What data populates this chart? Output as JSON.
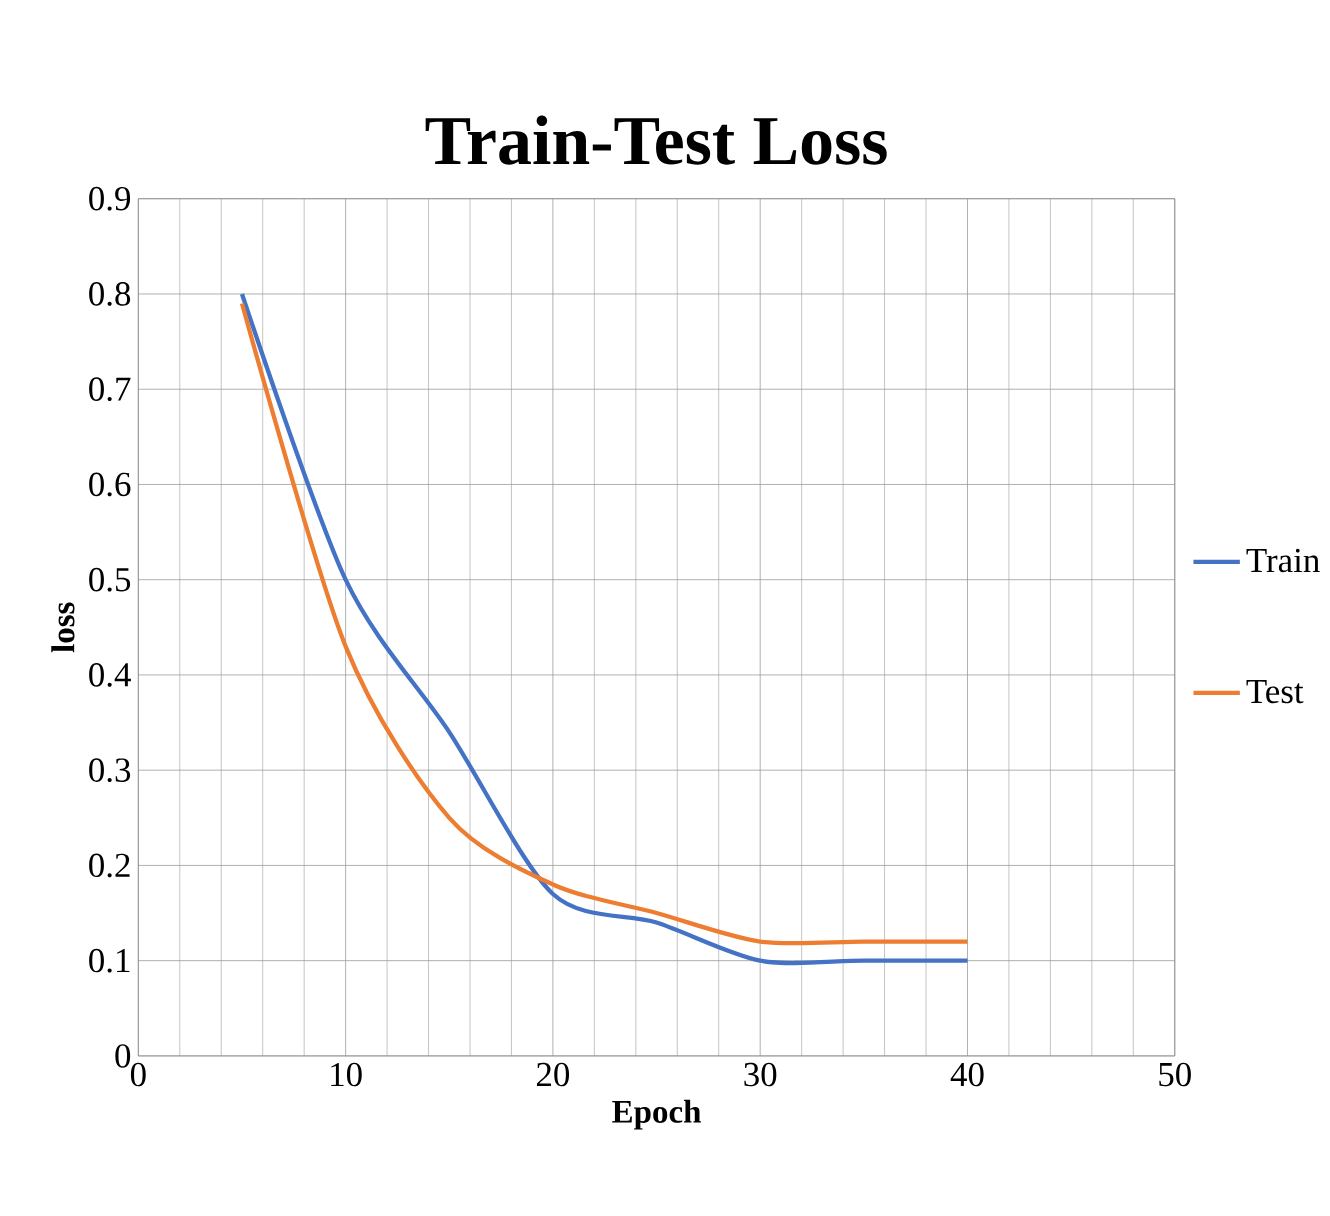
{
  "chart_data": {
    "type": "line",
    "title": "Train-Test Loss",
    "xlabel": "Epoch",
    "ylabel": "loss",
    "x": [
      5,
      10,
      15,
      20,
      25,
      30,
      35,
      40
    ],
    "series": [
      {
        "name": "Train",
        "color": "#4472c4",
        "values": [
          0.8,
          0.5,
          0.34,
          0.17,
          0.14,
          0.1,
          0.1,
          0.1
        ]
      },
      {
        "name": "Test",
        "color": "#ed7d31",
        "values": [
          0.79,
          0.43,
          0.25,
          0.18,
          0.15,
          0.12,
          0.12,
          0.12
        ]
      }
    ],
    "xlim": [
      0,
      50
    ],
    "ylim": [
      0,
      0.9
    ],
    "xticks": [
      0,
      10,
      20,
      30,
      40,
      50
    ],
    "yticks": [
      0,
      0.1,
      0.2,
      0.3,
      0.4,
      0.5,
      0.6,
      0.7,
      0.8,
      0.9
    ],
    "grid": true,
    "legend": "right",
    "marker": "none",
    "line_style": "solid"
  }
}
